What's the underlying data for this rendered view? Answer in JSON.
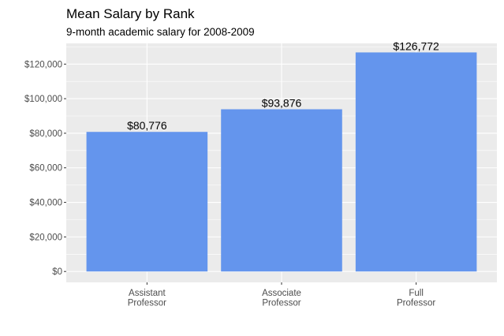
{
  "chart_data": {
    "type": "bar",
    "title": "Mean Salary by Rank",
    "subtitle": "9-month academic salary for 2008-2009",
    "xlabel": "",
    "ylabel": "",
    "categories": [
      "Assistant\nProfessor",
      "Associate\nProfessor",
      "Full\nProfessor"
    ],
    "values": [
      80776,
      93876,
      126772
    ],
    "data_labels": [
      "$80,776",
      "$93,876",
      "$126,772"
    ],
    "y_ticks": [
      0,
      20000,
      40000,
      60000,
      80000,
      100000,
      120000
    ],
    "y_tick_labels": [
      "$0",
      "$20,000",
      "$40,000",
      "$60,000",
      "$80,000",
      "$100,000",
      "$120,000"
    ],
    "ylim": [
      -6300,
      132000
    ],
    "grid": true,
    "legend": "none",
    "colors": {
      "bar": "#6495ED",
      "panel": "#EBEBEB",
      "grid_major": "#FFFFFF",
      "text": "#000000",
      "tick_text": "#4D4D4D"
    }
  }
}
